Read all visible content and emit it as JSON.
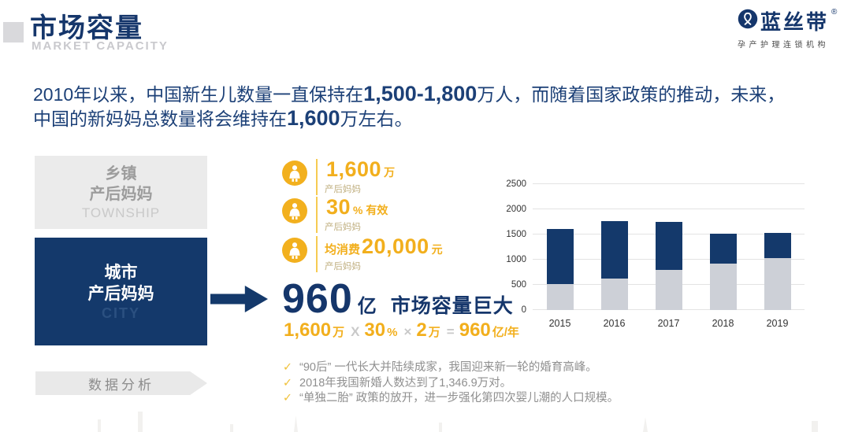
{
  "header": {
    "title": "市场容量",
    "subtitle": "MARKET CAPACITY"
  },
  "logo": {
    "brand": "蓝丝带",
    "registered": "®",
    "tagline": "孕产护理连锁机构"
  },
  "intro": {
    "s1": "2010年以来，中国新生儿数量一直保持在",
    "n1": "1,500-1,800",
    "s2": "万人，而随着国家政策的推动，未来，",
    "s3": "中国的新妈妈总数量将会维持在",
    "n2": "1,600",
    "s4": "万左右。"
  },
  "segments": {
    "township": {
      "line1": "乡镇",
      "line2": "产后妈妈",
      "en": "TOWNSHIP"
    },
    "city": {
      "line1": "城市",
      "line2": "产后妈妈",
      "en": "CITY"
    }
  },
  "stats": [
    {
      "prefix": "",
      "value": "1,600",
      "suffix": "万",
      "label": "产后妈妈"
    },
    {
      "prefix": "",
      "value": "30",
      "suffix": "% 有效",
      "label": "产后妈妈"
    },
    {
      "prefix": "均消费",
      "value": "20,000",
      "suffix": "元",
      "label": "产后妈妈"
    }
  ],
  "headline": {
    "number": "960",
    "unit": "亿",
    "text": "市场容量巨大"
  },
  "formula": {
    "p1": "1,600",
    "u1": "万",
    "op1": "X",
    "p2": "30",
    "u2": "%",
    "op2": "×",
    "p3": "2",
    "u3": "万",
    "op3": "=",
    "p4": "960",
    "u4": "亿/年"
  },
  "data_analysis_label": "数据分析",
  "bullets": [
    {
      "check": "✓",
      "text": "“90后” 一代长大并陆续成家，我国迎来新一轮的婚育高峰。"
    },
    {
      "check": "✓",
      "text": "2018年我国新婚人数达到了1,346.9万对。"
    },
    {
      "check": "✓",
      "text": "“单独二胎” 政策的放开，进一步强化第四次婴儿潮的人口规模。"
    }
  ],
  "colors": {
    "navy": "#14396B",
    "yellow": "#F2AF1D",
    "bar_gray": "#CDD0D7",
    "grid": "#E3E3E3"
  },
  "chart_data": {
    "type": "bar",
    "subtype": "stacked",
    "title": "",
    "xlabel": "",
    "ylabel": "",
    "categories": [
      "2015",
      "2016",
      "2017",
      "2018",
      "2019"
    ],
    "series": [
      {
        "name": "bottom-gray",
        "color": "#CDD0D7",
        "values": [
          510,
          630,
          800,
          920,
          1030
        ]
      },
      {
        "name": "top-navy",
        "color": "#14396B",
        "values": [
          1100,
          1140,
          950,
          600,
          500
        ]
      }
    ],
    "totals": [
      1610,
      1770,
      1750,
      1520,
      1530
    ],
    "ylim": [
      0,
      2500
    ],
    "yticks": [
      0,
      500,
      1000,
      1500,
      2000,
      2500
    ],
    "grid": true,
    "legend": "none"
  }
}
